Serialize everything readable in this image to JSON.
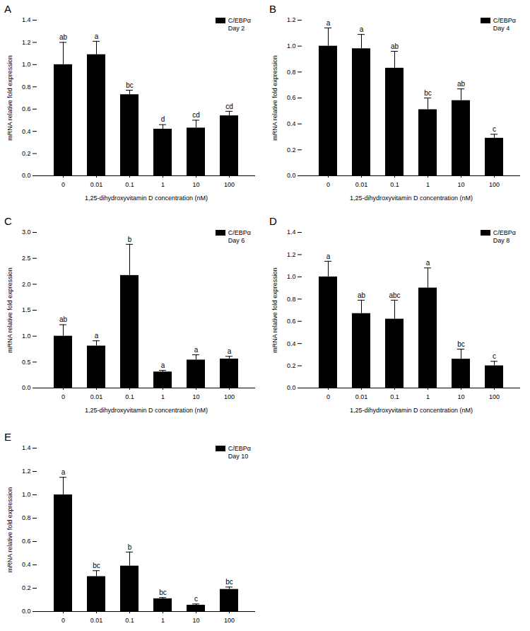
{
  "chart_data": [
    {
      "type": "bar",
      "title": "A",
      "subtitle": "Day 2",
      "xlabel": "1,25-dihydroxyvitamin D concentration (nM)",
      "ylabel": "mRNA relative fold expression",
      "categories": [
        "0",
        "0.01",
        "0.1",
        "1",
        "10",
        "100"
      ],
      "series": [
        {
          "name": "C/EBPα",
          "color": "#000000",
          "values": [
            1.0,
            1.09,
            0.73,
            0.42,
            0.43,
            0.54
          ],
          "errors": [
            0.2,
            0.12,
            0.04,
            0.04,
            0.07,
            0.04
          ],
          "annotations": [
            "ab",
            "a",
            "bc",
            "d",
            "cd",
            "cd"
          ]
        }
      ],
      "ylim": [
        0,
        1.4
      ],
      "yticks": [
        {
          "value": 0,
          "label": "0.0"
        },
        {
          "value": 0.2,
          "label": "0.2"
        },
        {
          "value": 0.4,
          "label": "0.4"
        },
        {
          "value": 0.6,
          "label": "0.6"
        },
        {
          "value": 0.8,
          "label": "0.8"
        },
        {
          "value": 1.0,
          "label": "1.0"
        },
        {
          "value": 1.2,
          "label": "1.2"
        },
        {
          "value": 1.4,
          "label": "1.4"
        }
      ],
      "legend": "top-right",
      "grid": false
    },
    {
      "type": "bar",
      "title": "B",
      "subtitle": "Day 4",
      "xlabel": "1,25-dihydroxyvitamin D concentration (nM)",
      "ylabel": "mRNA relative fold expression",
      "categories": [
        "0",
        "0.01",
        "0.1",
        "1",
        "10",
        "100"
      ],
      "series": [
        {
          "name": "C/EBPα",
          "color": "#000000",
          "values": [
            1.0,
            0.98,
            0.83,
            0.51,
            0.58,
            0.29
          ],
          "errors": [
            0.14,
            0.11,
            0.13,
            0.09,
            0.09,
            0.03
          ],
          "annotations": [
            "a",
            "a",
            "ab",
            "bc",
            "ab",
            "c"
          ]
        }
      ],
      "ylim": [
        0,
        1.2
      ],
      "yticks": [
        {
          "value": 0,
          "label": "0.0"
        },
        {
          "value": 0.2,
          "label": "0.2"
        },
        {
          "value": 0.4,
          "label": "0.4"
        },
        {
          "value": 0.6,
          "label": "0.6"
        },
        {
          "value": 0.8,
          "label": "0.8"
        },
        {
          "value": 1.0,
          "label": "1.0"
        },
        {
          "value": 1.2,
          "label": "1.2"
        }
      ],
      "legend": "top-right",
      "grid": false
    },
    {
      "type": "bar",
      "title": "C",
      "subtitle": "Day 6",
      "xlabel": "1,25-dihydroxyvitamin D concentration (nM)",
      "ylabel": "mRNA relative fold expression",
      "categories": [
        "0",
        "0.01",
        "0.1",
        "1",
        "10",
        "100"
      ],
      "series": [
        {
          "name": "C/EBPα",
          "color": "#000000",
          "values": [
            1.0,
            0.81,
            2.17,
            0.31,
            0.54,
            0.56
          ],
          "errors": [
            0.22,
            0.1,
            0.6,
            0.03,
            0.1,
            0.05
          ],
          "annotations": [
            "ab",
            "a",
            "b",
            "a",
            "a",
            "a"
          ]
        }
      ],
      "ylim": [
        0,
        3.0
      ],
      "yticks": [
        {
          "value": 0,
          "label": "0.0"
        },
        {
          "value": 0.5,
          "label": "0.5"
        },
        {
          "value": 1.0,
          "label": "1.0"
        },
        {
          "value": 1.5,
          "label": "1.5"
        },
        {
          "value": 2.0,
          "label": "2.0"
        },
        {
          "value": 2.5,
          "label": "2.5"
        },
        {
          "value": 3.0,
          "label": "3.0"
        }
      ],
      "legend": "top-right",
      "grid": false
    },
    {
      "type": "bar",
      "title": "D",
      "subtitle": "Day 8",
      "xlabel": "1,25-dihydroxyvitamin D concentration (nM)",
      "ylabel": "mRNA relative fold expression",
      "categories": [
        "0",
        "0.01",
        "0.1",
        "1",
        "10",
        "100"
      ],
      "series": [
        {
          "name": "C/EBPα",
          "color": "#000000",
          "values": [
            1.0,
            0.67,
            0.62,
            0.9,
            0.26,
            0.2
          ],
          "errors": [
            0.14,
            0.12,
            0.17,
            0.18,
            0.09,
            0.04
          ],
          "annotations": [
            "a",
            "ab",
            "abc",
            "a",
            "bc",
            "c"
          ]
        }
      ],
      "ylim": [
        0,
        1.4
      ],
      "yticks": [
        {
          "value": 0,
          "label": "0.0"
        },
        {
          "value": 0.2,
          "label": "0.2"
        },
        {
          "value": 0.4,
          "label": "0.4"
        },
        {
          "value": 0.6,
          "label": "0.6"
        },
        {
          "value": 0.8,
          "label": "0.8"
        },
        {
          "value": 1.0,
          "label": "1.0"
        },
        {
          "value": 1.2,
          "label": "1.2"
        },
        {
          "value": 1.4,
          "label": "1.4"
        }
      ],
      "legend": "top-right",
      "grid": false
    },
    {
      "type": "bar",
      "title": "E",
      "subtitle": "Day 10",
      "ylabel": "mRNA relative fold expression",
      "categories": [
        "0",
        "0.01",
        "0.1",
        "1",
        "10",
        "100"
      ],
      "series": [
        {
          "name": "C/EBPα",
          "color": "#000000",
          "values": [
            1.0,
            0.3,
            0.39,
            0.11,
            0.055,
            0.19
          ],
          "errors": [
            0.15,
            0.05,
            0.12,
            0.01,
            0.01,
            0.02
          ],
          "annotations": [
            "a",
            "bc",
            "b",
            "bc",
            "c",
            "bc"
          ]
        }
      ],
      "ylim": [
        0,
        1.4
      ],
      "yticks": [
        {
          "value": 0,
          "label": "0.0"
        },
        {
          "value": 0.2,
          "label": "0.2"
        },
        {
          "value": 0.4,
          "label": "0.4"
        },
        {
          "value": 0.6,
          "label": "0.6"
        },
        {
          "value": 0.8,
          "label": "0.8"
        },
        {
          "value": 1.0,
          "label": "1.0"
        },
        {
          "value": 1.2,
          "label": "1.2"
        },
        {
          "value": 1.4,
          "label": "1.4"
        }
      ],
      "legend": "top-right",
      "grid": false
    }
  ]
}
